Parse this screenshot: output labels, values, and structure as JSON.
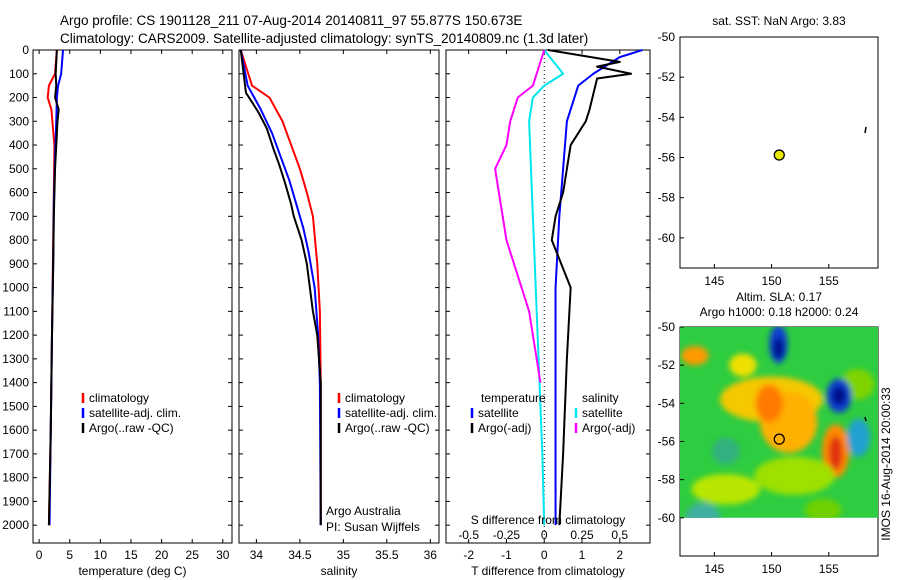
{
  "header": {
    "line1": "Argo profile: CS 1901128_211 07-Aug-2014 20140811_97 55.877S 150.673E",
    "line2": "Climatology: CARS2009. Satellite-adjusted climatology: synTS_20140809.nc (1.3d later)"
  },
  "colors": {
    "climatology": "#ff0000",
    "satellite": "#0000ff",
    "argo": "#000000",
    "salinity_sat": "#00e5ee",
    "salinity_argo": "#ff00ff",
    "float_marker": "#e8e800"
  },
  "chart_data": [
    {
      "name": "temperature-panel",
      "type": "line",
      "xlabel": "temperature (deg C)",
      "xlim": [
        -1,
        31.5
      ],
      "ylim": [
        0,
        2075
      ],
      "y_inverted": true,
      "xticks": [
        0,
        5,
        10,
        15,
        20,
        25,
        30
      ],
      "yticks": [
        0,
        100,
        200,
        300,
        400,
        500,
        600,
        700,
        800,
        900,
        1000,
        1100,
        1200,
        1300,
        1400,
        1500,
        1600,
        1700,
        1800,
        1900,
        2000
      ],
      "legend": [
        "climatology",
        "satellite-adj. clim.",
        "Argo(..raw -QC)"
      ],
      "series": [
        {
          "name": "climatology",
          "color_key": "climatology",
          "x": [
            2.9,
            2.6,
            1.6,
            1.4,
            2.0,
            2.5,
            2.4,
            2.3,
            2.1,
            1.9,
            1.6
          ],
          "y": [
            0,
            100,
            150,
            200,
            250,
            400,
            600,
            800,
            1200,
            1600,
            2000
          ]
        },
        {
          "name": "satellite-adj. clim.",
          "color_key": "satellite",
          "x": [
            3.9,
            3.6,
            3.1,
            2.9,
            2.8,
            2.6,
            2.4,
            2.3,
            2.1,
            1.9,
            1.7
          ],
          "y": [
            0,
            100,
            150,
            200,
            300,
            450,
            650,
            900,
            1200,
            1600,
            2000
          ]
        },
        {
          "name": "Argo(..raw -QC)",
          "color_key": "argo",
          "x": [
            2.9,
            2.7,
            2.8,
            2.6,
            3.2,
            3.0,
            2.6,
            2.4,
            2.3,
            2.1,
            1.9,
            1.6
          ],
          "y": [
            0,
            100,
            150,
            200,
            250,
            300,
            500,
            700,
            900,
            1200,
            1600,
            2000
          ]
        }
      ]
    },
    {
      "name": "salinity-panel",
      "type": "line",
      "xlabel": "salinity",
      "xlim": [
        33.8,
        36.1
      ],
      "ylim": [
        0,
        2075
      ],
      "y_inverted": true,
      "xticks": [
        34,
        34.5,
        35,
        35.5,
        36
      ],
      "xtick_labels": [
        "34",
        "34.5",
        "35",
        "35.5",
        "36"
      ],
      "legend": [
        "climatology",
        "satellite-adj. clim.",
        "Argo(..raw -QC)"
      ],
      "annotations": [
        "Argo Australia",
        "PI: Susan Wijffels"
      ],
      "series": [
        {
          "name": "climatology",
          "color_key": "climatology",
          "x": [
            33.82,
            33.95,
            34.15,
            34.3,
            34.4,
            34.5,
            34.58,
            34.65,
            34.7,
            34.73,
            34.74,
            34.74
          ],
          "y": [
            0,
            150,
            200,
            300,
            400,
            500,
            600,
            700,
            900,
            1100,
            1400,
            2000
          ]
        },
        {
          "name": "satellite-adj. clim.",
          "color_key": "satellite",
          "x": [
            33.82,
            33.9,
            34.05,
            34.18,
            34.28,
            34.38,
            34.46,
            34.54,
            34.6,
            34.67,
            34.71,
            34.73,
            34.74
          ],
          "y": [
            0,
            150,
            250,
            350,
            450,
            550,
            650,
            750,
            850,
            1000,
            1200,
            1400,
            2000
          ]
        },
        {
          "name": "Argo(..raw -QC)",
          "color_key": "argo",
          "x": [
            33.82,
            33.88,
            34.02,
            34.12,
            34.2,
            34.26,
            34.33,
            34.4,
            34.43,
            34.52,
            34.58,
            34.65,
            34.7,
            34.72,
            34.74,
            34.74
          ],
          "y": [
            0,
            180,
            260,
            330,
            420,
            480,
            560,
            650,
            700,
            800,
            900,
            1100,
            1200,
            1300,
            1400,
            2000
          ]
        }
      ]
    },
    {
      "name": "difference-panel",
      "type": "line",
      "xlabel": "T difference from climatology",
      "xlabel_top": "S difference from climatology",
      "xlim": [
        -2.6,
        2.8
      ],
      "ylim": [
        0,
        2075
      ],
      "y_inverted": true,
      "xticks": [
        -2,
        -1,
        0,
        1,
        2
      ],
      "s_ticks": [
        -0.5,
        -0.25,
        0,
        0.25,
        0.5
      ],
      "s_tick_labels": [
        "-0.5",
        "-0.25",
        "0",
        "0.25",
        "0.5"
      ],
      "legend_temperature": [
        "temperature",
        "satellite",
        "Argo(-adj)"
      ],
      "legend_salinity": [
        "salinity",
        "satellite",
        "Argo(-adj)"
      ],
      "series": [
        {
          "name": "temperature satellite",
          "color_key": "satellite",
          "x": [
            2.6,
            2.0,
            1.3,
            0.9,
            0.8,
            0.6,
            0.5,
            0.4,
            0.3,
            0.3,
            0.3,
            0.3
          ],
          "y": [
            0,
            30,
            100,
            150,
            200,
            300,
            500,
            700,
            1000,
            1400,
            1800,
            2000
          ]
        },
        {
          "name": "temperature Argo(-adj)",
          "color_key": "argo",
          "x": [
            0.1,
            2.0,
            1.4,
            2.3,
            1.4,
            1.2,
            1.1,
            0.7,
            0.5,
            0.3,
            0.2,
            0.7,
            0.6,
            0.5,
            0.4
          ],
          "y": [
            0,
            50,
            70,
            100,
            120,
            250,
            300,
            400,
            600,
            700,
            800,
            1000,
            1300,
            1700,
            2000
          ]
        },
        {
          "name": "salinity satellite",
          "color_key": "salinity_sat",
          "x": [
            0,
            0.5,
            0.0,
            -0.3,
            -0.4,
            -0.35,
            -0.3,
            -0.25,
            -0.2,
            -0.15,
            -0.1,
            -0.05,
            0
          ],
          "y": [
            0,
            100,
            150,
            200,
            300,
            500,
            700,
            900,
            1100,
            1300,
            1500,
            1700,
            2000
          ]
        },
        {
          "name": "salinity Argo(-adj)",
          "color_key": "salinity_argo",
          "x": [
            0,
            -0.3,
            -0.7,
            -0.9,
            -1.0,
            -1.3,
            -1.2,
            -1.1,
            -1.0,
            -0.8,
            -0.6,
            -0.4,
            -0.2,
            -0.1
          ],
          "y": [
            0,
            150,
            200,
            300,
            400,
            500,
            600,
            700,
            800,
            900,
            1000,
            1100,
            1300,
            1400
          ]
        }
      ]
    },
    {
      "name": "sst-map",
      "type": "scatter",
      "title": "sat. SST: NaN Argo: 3.83",
      "xlim": [
        142,
        159.3
      ],
      "ylim": [
        -61.5,
        -50
      ],
      "xticks": [
        145,
        150,
        155
      ],
      "yticks": [
        -50,
        -52,
        -54,
        -56,
        -58,
        -60
      ],
      "points": [
        {
          "x": 150.673,
          "y": -55.877
        }
      ]
    },
    {
      "name": "sla-map",
      "type": "heatmap",
      "title_line1": "Altim. SLA: 0.17",
      "title_line2": "Argo h1000: 0.18 h2000: 0.24",
      "xlim": [
        142,
        159.3
      ],
      "ylim": [
        -62,
        -50
      ],
      "xticks": [
        145,
        150,
        155
      ],
      "yticks": [
        -50,
        -52,
        -54,
        -56,
        -58,
        -60
      ],
      "side_label": "IMOS 16-Aug-2014 20:00:33",
      "points": [
        {
          "x": 150.673,
          "y": -55.877
        }
      ]
    }
  ]
}
